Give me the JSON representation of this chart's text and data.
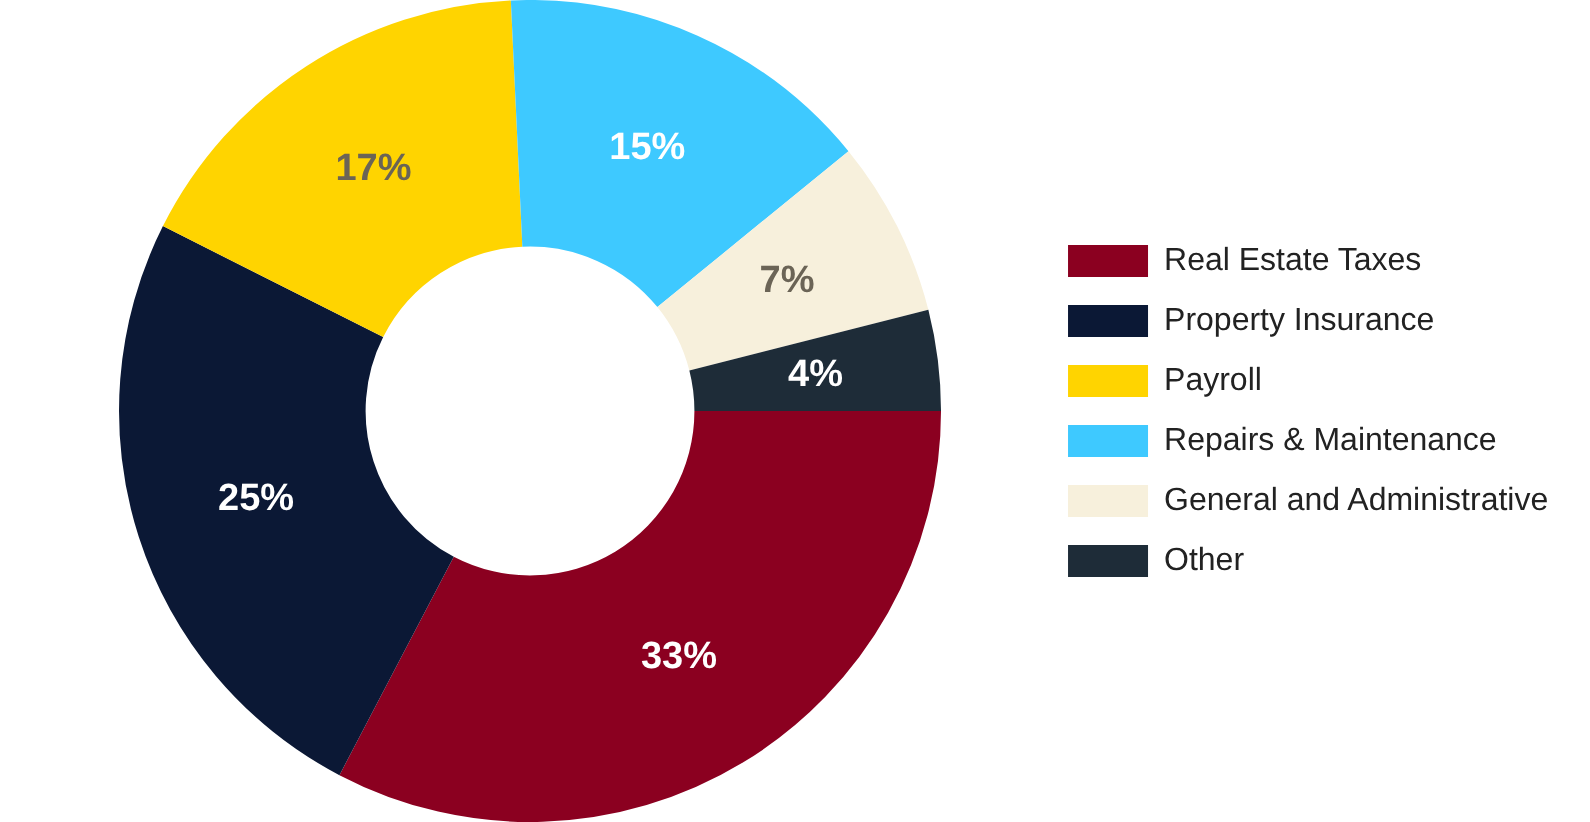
{
  "chart_data": {
    "type": "donut",
    "categories": [
      "Real Estate Taxes",
      "Property Insurance",
      "Payroll",
      "Repairs & Maintenance",
      "General and Administrative",
      "Other"
    ],
    "values": [
      33,
      25,
      17,
      15,
      7,
      4
    ],
    "colors": [
      "#8b0020",
      "#0b1835",
      "#ffd400",
      "#3ec9ff",
      "#f7f0dc",
      "#1e2c38"
    ],
    "value_labels": [
      "33%",
      "25%",
      "17%",
      "15%",
      "7%",
      "4%"
    ],
    "legend": "right"
  }
}
